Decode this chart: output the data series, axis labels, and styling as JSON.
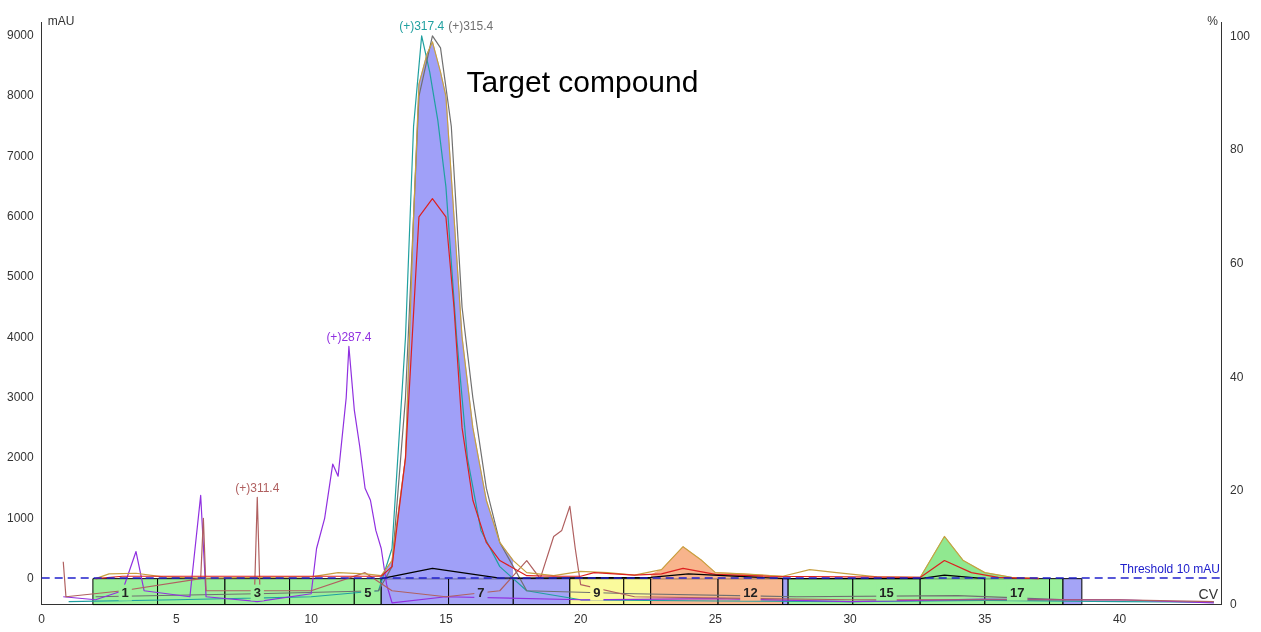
{
  "chart_data": {
    "type": "line",
    "xlabel": "CV",
    "ylabel": "mAU",
    "y2label": "%",
    "xlim": [
      0,
      43.8
    ],
    "xticks": [
      0,
      5,
      10,
      15,
      20,
      25,
      30,
      35,
      40
    ],
    "ylim": [
      -430,
      9230
    ],
    "yticks": [
      0,
      1000,
      2000,
      3000,
      4000,
      5000,
      6000,
      7000,
      8000,
      9000
    ],
    "y2lim": [
      0,
      102.5
    ],
    "y2ticks": [
      0,
      20,
      40,
      60,
      80,
      100
    ],
    "grid": false,
    "legend": false,
    "marker": "none",
    "annotations": [
      "Target compound"
    ],
    "ref_lines": [
      {
        "axis": "y",
        "value": 10,
        "label": "Threshold 10 mAU",
        "color": "#2020cc",
        "line_style": "dashed"
      }
    ],
    "bands": [
      {
        "axis": "x",
        "from": 1.9,
        "to": 4.3,
        "label": "1",
        "color": "#9cf09c"
      },
      {
        "axis": "x",
        "from": 4.3,
        "to": 6.8,
        "label": null,
        "color": "#9cf09c"
      },
      {
        "axis": "x",
        "from": 6.8,
        "to": 9.2,
        "label": "3",
        "color": "#9cf09c"
      },
      {
        "axis": "x",
        "from": 9.2,
        "to": 11.6,
        "label": null,
        "color": "#9cf09c"
      },
      {
        "axis": "x",
        "from": 11.6,
        "to": 12.6,
        "label": "5",
        "color": "#9cf09c"
      },
      {
        "axis": "x",
        "from": 12.6,
        "to": 15.1,
        "label": null,
        "color": "#a4a4f6"
      },
      {
        "axis": "x",
        "from": 15.1,
        "to": 17.5,
        "label": "7",
        "color": "#a4a4f6"
      },
      {
        "axis": "x",
        "from": 17.5,
        "to": 19.6,
        "label": null,
        "color": "#a4a4f6"
      },
      {
        "axis": "x",
        "from": 19.6,
        "to": 21.6,
        "label": "9",
        "color": "#fafa9c"
      },
      {
        "axis": "x",
        "from": 21.6,
        "to": 22.6,
        "label": null,
        "color": "#fafa9c"
      },
      {
        "axis": "x",
        "from": 22.6,
        "to": 25.1,
        "label": null,
        "color": "#f8b890"
      },
      {
        "axis": "x",
        "from": 25.1,
        "to": 27.5,
        "label": "12",
        "color": "#f8b890"
      },
      {
        "axis": "x",
        "from": 27.5,
        "to": 27.7,
        "label": null,
        "color": "#a4a4f6"
      },
      {
        "axis": "x",
        "from": 27.7,
        "to": 30.1,
        "label": null,
        "color": "#9cf09c"
      },
      {
        "axis": "x",
        "from": 30.1,
        "to": 32.6,
        "label": "15",
        "color": "#9cf09c"
      },
      {
        "axis": "x",
        "from": 32.6,
        "to": 35.0,
        "label": null,
        "color": "#9cf09c"
      },
      {
        "axis": "x",
        "from": 35.0,
        "to": 37.4,
        "label": "17",
        "color": "#9cf09c"
      },
      {
        "axis": "x",
        "from": 37.4,
        "to": 37.9,
        "label": null,
        "color": "#9cf09c"
      },
      {
        "axis": "x",
        "from": 37.9,
        "to": 38.6,
        "label": null,
        "color": "#a4a4f6"
      }
    ],
    "series": [
      {
        "type": "area",
        "color": "#a0a0f8",
        "x": [
          12.6,
          13,
          13.5,
          13.8,
          14,
          14.3,
          14.5,
          14.8,
          15,
          15.3,
          15.6,
          16,
          16.5,
          17,
          17.5
        ],
        "values": [
          50,
          300,
          2000,
          6000,
          8200,
          8700,
          8900,
          8400,
          8000,
          6000,
          4000,
          2500,
          1300,
          600,
          300
        ]
      },
      {
        "type": "area",
        "color": "#f8b48c",
        "x": [
          22.6,
          23,
          23.8,
          24.5,
          25,
          26,
          27.5
        ],
        "values": [
          60,
          150,
          530,
          300,
          100,
          80,
          40
        ]
      },
      {
        "type": "area",
        "color": "#90e890",
        "x": [
          32.6,
          33.5,
          34.2,
          35,
          36
        ],
        "values": [
          20,
          700,
          300,
          100,
          20
        ]
      },
      {
        "name": "(+)317.4",
        "color": "#20a0a0",
        "x": [
          1,
          5,
          10,
          12.5,
          13,
          13.5,
          13.8,
          14.1,
          14.4,
          14.7,
          15,
          15.4,
          15.8,
          16.3,
          17,
          18,
          20,
          25,
          30,
          35,
          40,
          43.5
        ],
        "values": [
          -380,
          -350,
          -300,
          -200,
          500,
          4000,
          7500,
          9000,
          8400,
          7600,
          6500,
          4000,
          2000,
          800,
          200,
          -200,
          -350,
          -370,
          -380,
          -360,
          -380,
          -390
        ]
      },
      {
        "name": "(+)315.4",
        "color": "#707070",
        "x": [
          2,
          8,
          12.5,
          13,
          13.5,
          14,
          14.5,
          14.8,
          15.2,
          15.6,
          16,
          16.5,
          17,
          17.5,
          18,
          22,
          28,
          34,
          38
        ],
        "values": [
          -300,
          -250,
          -200,
          200,
          3000,
          8000,
          9000,
          8800,
          7500,
          4500,
          3000,
          1500,
          600,
          200,
          -200,
          -250,
          -300,
          -280,
          -350
        ]
      },
      {
        "name": "(+)287.4",
        "color": "#9030e0",
        "x": [
          0.8,
          2,
          3,
          3.5,
          3.8,
          5.5,
          5.9,
          6.1,
          8,
          10,
          10.2,
          10.5,
          10.8,
          11,
          11.3,
          11.4,
          11.6,
          11.8,
          12,
          12.2,
          12.4,
          12.6,
          12.8,
          13,
          15,
          20,
          25,
          30,
          35,
          40,
          43.5
        ],
        "values": [
          -300,
          -350,
          -200,
          450,
          -200,
          -300,
          1380,
          -300,
          -380,
          -250,
          500,
          1000,
          1900,
          1700,
          3000,
          3850,
          2800,
          2200,
          1500,
          1300,
          800,
          500,
          -100,
          -400,
          -300,
          -350,
          -330,
          -380,
          -340,
          -350,
          -400
        ]
      },
      {
        "name": "(+)311.4",
        "color": "#b06060",
        "x": [
          0.8,
          0.9,
          3,
          5.9,
          6,
          6.1,
          7.9,
          8,
          8.1,
          10,
          12,
          13,
          15,
          17,
          18,
          18.5,
          19,
          19.3,
          19.6,
          19.8,
          20,
          22,
          30,
          40,
          43.5
        ],
        "values": [
          280,
          -300,
          -200,
          0,
          1000,
          -200,
          -200,
          1350,
          -200,
          -200,
          100,
          -200,
          -300,
          -200,
          300,
          0,
          700,
          800,
          1200,
          500,
          -100,
          -300,
          -350,
          -350,
          -380
        ]
      },
      {
        "color": "#c8a040",
        "x": [
          2,
          2.5,
          3.5,
          4.5,
          6,
          8,
          10,
          11,
          12,
          12.6,
          13,
          13.5,
          13.8,
          14,
          14.3,
          14.5,
          14.8,
          15,
          15.3,
          15.6,
          16,
          16.5,
          17,
          17.5,
          18,
          19,
          20,
          21,
          22,
          23,
          23.8,
          24.5,
          25,
          26,
          27.5,
          28.5,
          29.5,
          31,
          32.6,
          33.5,
          34.2,
          35,
          36,
          37
        ],
        "values": [
          0,
          80,
          90,
          30,
          10,
          20,
          30,
          100,
          80,
          50,
          300,
          2000,
          6000,
          8200,
          8700,
          8900,
          8400,
          8000,
          6000,
          4000,
          2500,
          1300,
          600,
          300,
          100,
          50,
          120,
          100,
          60,
          150,
          530,
          300,
          100,
          80,
          40,
          150,
          100,
          30,
          20,
          700,
          300,
          100,
          20,
          10
        ]
      },
      {
        "color": "#dd2020",
        "x": [
          2,
          3,
          12.6,
          13,
          13.5,
          14,
          14.5,
          15,
          15.3,
          15.6,
          16,
          16.5,
          17,
          18,
          19,
          20,
          20.5,
          22,
          23,
          23.8,
          25,
          27,
          30,
          32.6,
          33.5,
          34.5,
          35.5,
          37
        ],
        "values": [
          0,
          40,
          40,
          200,
          2000,
          6000,
          6300,
          6000,
          4500,
          2500,
          1300,
          600,
          300,
          50,
          40,
          40,
          100,
          60,
          80,
          170,
          70,
          40,
          30,
          20,
          300,
          100,
          20,
          0
        ]
      },
      {
        "color": "#000000",
        "x": [
          12.6,
          14.5,
          17,
          22.6,
          24,
          27.6,
          32.6,
          33.5,
          35
        ],
        "values": [
          0,
          170,
          10,
          20,
          80,
          0,
          0,
          60,
          0
        ]
      }
    ]
  }
}
